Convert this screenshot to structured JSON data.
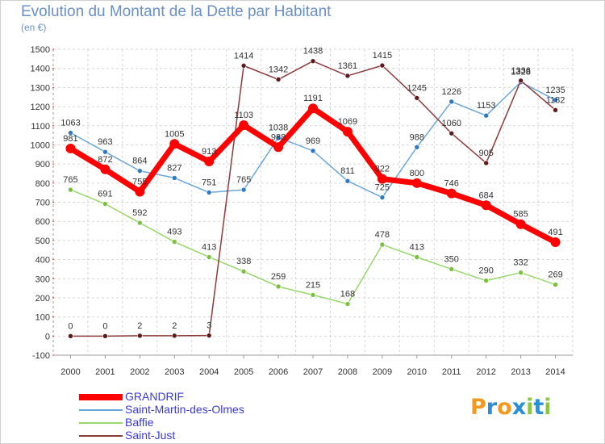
{
  "title": "Evolution du Montant de la Dette par Habitant",
  "subtitle": "(en €)",
  "logo": {
    "text": "Proxiti",
    "letter_colors": [
      "#f39a1e",
      "#2a8fd6",
      "#f39a1e",
      "#2a8fd6",
      "#8cc63f",
      "#2a8fd6",
      "#8cc63f"
    ]
  },
  "chart_data": {
    "type": "line",
    "title": "Evolution du Montant de la Dette par Habitant",
    "subtitle": "(en €)",
    "xlabel": "",
    "ylabel": "",
    "x": [
      2000,
      2001,
      2002,
      2003,
      2004,
      2005,
      2006,
      2007,
      2008,
      2009,
      2010,
      2011,
      2012,
      2013,
      2014
    ],
    "ylim": [
      -100,
      1500
    ],
    "yticks": [
      -100,
      0,
      100,
      200,
      300,
      400,
      500,
      600,
      700,
      800,
      900,
      1000,
      1100,
      1200,
      1300,
      1400,
      1500
    ],
    "grid": true,
    "legend_position": "bottom-left",
    "series": [
      {
        "name": "GRANDRIF",
        "color": "#ff0000",
        "width": 7,
        "marker_color": "#ff0000",
        "values": [
          981,
          872,
          755,
          1005,
          913,
          1103,
          988,
          1191,
          1069,
          822,
          800,
          746,
          684,
          585,
          491
        ]
      },
      {
        "name": "Saint-Martin-des-Olmes",
        "color": "#6aa7d8",
        "width": 1.5,
        "marker_color": "#2f79c2",
        "values": [
          1063,
          963,
          864,
          827,
          751,
          765,
          1038,
          969,
          811,
          725,
          988,
          1226,
          1153,
          1328,
          1235
        ]
      },
      {
        "name": "Baffie",
        "color": "#98d86a",
        "width": 1.5,
        "marker_color": "#7cc040",
        "values": [
          765,
          691,
          592,
          493,
          413,
          338,
          259,
          215,
          168,
          478,
          413,
          350,
          290,
          332,
          269
        ]
      },
      {
        "name": "Saint-Just",
        "color": "#8c3a3a",
        "width": 1.5,
        "marker_color": "#5e1a1a",
        "values": [
          0,
          0,
          2,
          2,
          3,
          1414,
          1342,
          1438,
          1361,
          1415,
          1245,
          1060,
          905,
          1336,
          1182
        ]
      }
    ]
  }
}
